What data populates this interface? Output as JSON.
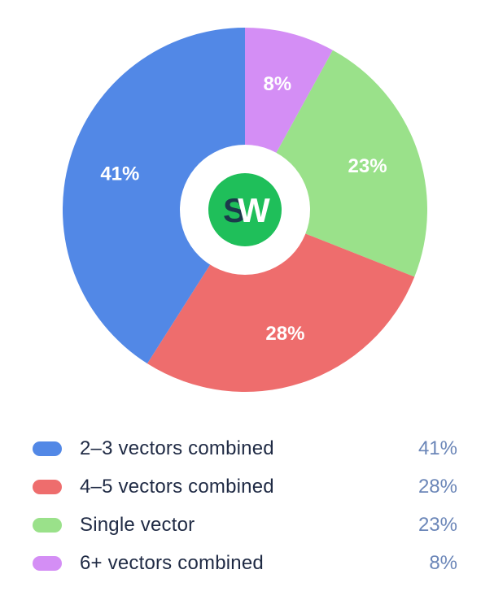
{
  "chart_data": {
    "type": "pie",
    "donut": true,
    "start": "top",
    "direction": "clockwise",
    "slices": [
      {
        "label": "6+ vectors combined",
        "value": 8,
        "display": "8%",
        "color": "#d48ef5"
      },
      {
        "label": "Single vector",
        "value": 23,
        "display": "23%",
        "color": "#9ae18a"
      },
      {
        "label": "4–5 vectors combined",
        "value": 28,
        "display": "28%",
        "color": "#ee6d6d"
      },
      {
        "label": "2–3 vectors combined",
        "value": 41,
        "display": "41%",
        "color": "#5288e6"
      }
    ],
    "legend_order": [
      3,
      2,
      1,
      0
    ],
    "legend_placement": "bottom"
  },
  "center_logo": {
    "text_s": "S",
    "text_w": "W",
    "circle_color": "#1fbf5a",
    "s_color": "#1b3a4b",
    "w_color": "#ffffff"
  }
}
